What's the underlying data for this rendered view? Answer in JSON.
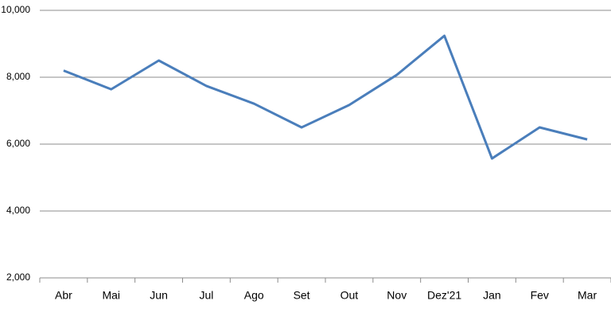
{
  "chart_data": {
    "type": "line",
    "categories": [
      "Abr",
      "Mai",
      "Jun",
      "Jul",
      "Ago",
      "Set",
      "Out",
      "Nov",
      "Dez'21",
      "Jan",
      "Fev",
      "Mar"
    ],
    "values": [
      8200,
      7640,
      8500,
      7740,
      7210,
      6500,
      7170,
      8070,
      9240,
      5570,
      6500,
      6140
    ],
    "color": "#4a7ebb",
    "ylim": [
      2000,
      10000
    ],
    "yticks": [
      {
        "value": 2000,
        "label": "2,000"
      },
      {
        "value": 4000,
        "label": "4,000"
      },
      {
        "value": 6000,
        "label": "6,000"
      },
      {
        "value": 8000,
        "label": "8,000"
      },
      {
        "value": 10000,
        "label": "10,000"
      }
    ],
    "grid": true
  }
}
